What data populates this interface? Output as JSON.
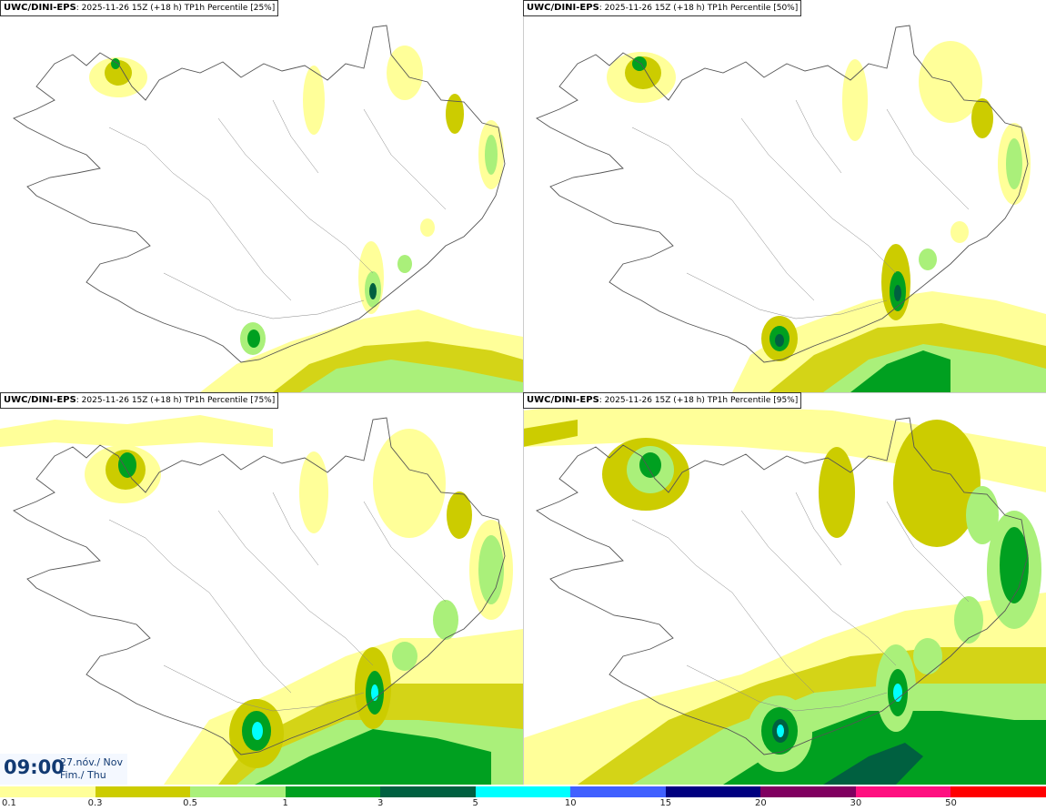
{
  "panels": [
    {
      "model": "UWC/DINI-EPS",
      "meta": ": 2025-11-26 15Z (+18 h) TP1h Percentile [25%]"
    },
    {
      "model": "UWC/DINI-EPS",
      "meta": ": 2025-11-26 15Z (+18 h) TP1h Percentile [50%]"
    },
    {
      "model": "UWC/DINI-EPS",
      "meta": ": 2025-11-26 15Z (+18 h) TP1h Percentile [75%]"
    },
    {
      "model": "UWC/DINI-EPS",
      "meta": ": 2025-11-26 15Z (+18 h) TP1h Percentile [95%]"
    }
  ],
  "time": {
    "clock": "09:00",
    "date_line": "27.nóv./ Nov",
    "day_line": "Fim./ Thu"
  },
  "legend": {
    "ticks": [
      "0.1",
      "0.3",
      "0.5",
      "1",
      "3",
      "5",
      "10",
      "15",
      "20",
      "30",
      "50"
    ],
    "colors": [
      "#ffff99",
      "#cccc00",
      "#aaf07a",
      "#00a020",
      "#006040",
      "#00ffff",
      "#4060ff",
      "#000080",
      "#800060",
      "#ff1080",
      "#ff0000"
    ]
  }
}
